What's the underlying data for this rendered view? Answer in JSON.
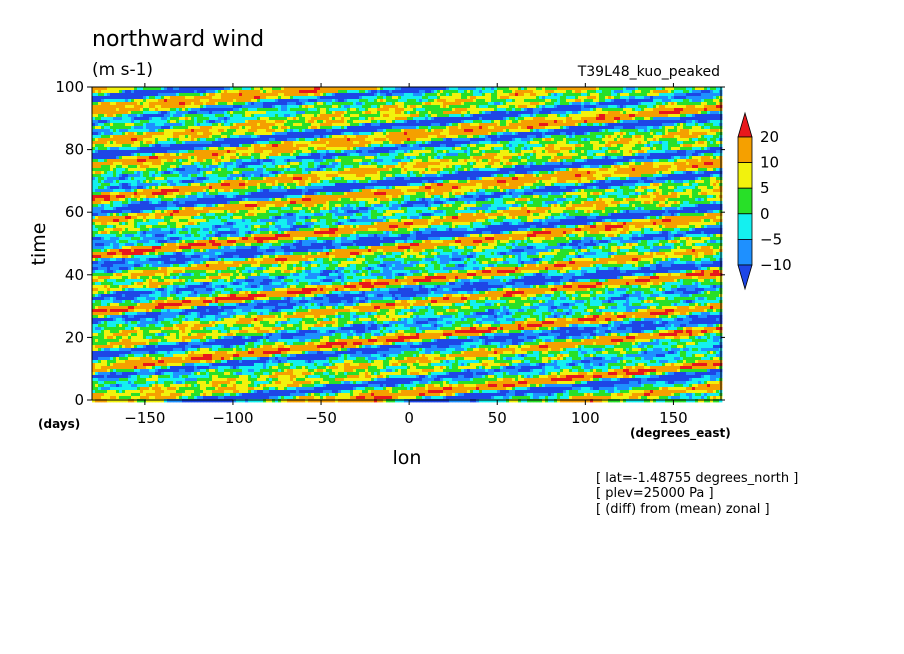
{
  "chart_data": {
    "type": "heatmap",
    "title": "northward wind",
    "units": "(m s-1)",
    "run_label": "T39L48_kuo_peaked",
    "xlabel": "lon",
    "xunit": "(degrees_east)",
    "ylabel": "time",
    "yunit": "(days)",
    "xlim": [
      -180,
      177
    ],
    "ylim": [
      0,
      100
    ],
    "xticks": [
      -150,
      -100,
      -50,
      0,
      50,
      100,
      150
    ],
    "yticks": [
      0,
      20,
      40,
      60,
      80,
      100
    ],
    "grid": false,
    "colorbar": {
      "levels": [
        "20",
        "10",
        "5",
        "0",
        "-5",
        "-10"
      ],
      "colors": [
        "#e8181c",
        "#f5a000",
        "#f2f20d",
        "#28e028",
        "#14f0f0",
        "#1e90ff",
        "#1e46e6"
      ],
      "placement": "right"
    },
    "annotations": [
      "[ lat=-1.48755 degrees_north ]",
      "[ plev=25000 Pa ]",
      "[ (diff) from (mean) zonal ]"
    ],
    "field_description": "Eastward-tilted banded wind anomaly pattern across longitude and time; values range roughly -15 to 25 m s-1"
  }
}
